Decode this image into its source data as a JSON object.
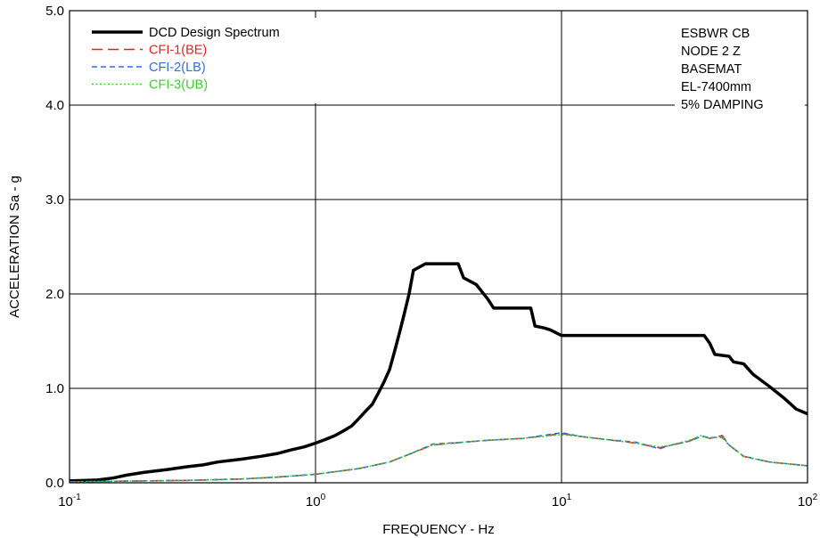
{
  "chart_data": {
    "type": "line",
    "xscale": "log",
    "xlim": [
      0.1,
      100
    ],
    "ylim": [
      0,
      5
    ],
    "xlabel": "FREQUENCY - Hz",
    "ylabel": "ACCELERATION Sa - g",
    "x_ticks": [
      {
        "base": "10",
        "exp": "-1"
      },
      {
        "base": "10",
        "exp": "0"
      },
      {
        "base": "10",
        "exp": "1"
      },
      {
        "base": "10",
        "exp": "2"
      }
    ],
    "y_ticks": [
      "0.0",
      "1.0",
      "2.0",
      "3.0",
      "4.0",
      "5.0"
    ],
    "grid": true,
    "legend_position": "top-left",
    "annotations": [
      "ESBWR CB",
      "NODE 2 Z",
      "BASEMAT",
      "EL-7400mm",
      "5% DAMPING"
    ],
    "series": [
      {
        "name": "DCD Design Spectrum",
        "color": "#000000",
        "style": "solid-thick",
        "points": [
          [
            0.1,
            0.02
          ],
          [
            0.13,
            0.03
          ],
          [
            0.15,
            0.05
          ],
          [
            0.17,
            0.08
          ],
          [
            0.2,
            0.11
          ],
          [
            0.25,
            0.14
          ],
          [
            0.3,
            0.17
          ],
          [
            0.35,
            0.19
          ],
          [
            0.4,
            0.22
          ],
          [
            0.5,
            0.25
          ],
          [
            0.6,
            0.28
          ],
          [
            0.7,
            0.31
          ],
          [
            0.8,
            0.35
          ],
          [
            0.9,
            0.38
          ],
          [
            1.0,
            0.42
          ],
          [
            1.1,
            0.46
          ],
          [
            1.2,
            0.5
          ],
          [
            1.3,
            0.55
          ],
          [
            1.4,
            0.6
          ],
          [
            1.5,
            0.68
          ],
          [
            1.6,
            0.76
          ],
          [
            1.7,
            0.83
          ],
          [
            1.8,
            0.95
          ],
          [
            1.9,
            1.07
          ],
          [
            2.0,
            1.2
          ],
          [
            2.1,
            1.4
          ],
          [
            2.2,
            1.6
          ],
          [
            2.3,
            1.8
          ],
          [
            2.4,
            2.0
          ],
          [
            2.5,
            2.25
          ],
          [
            2.8,
            2.32
          ],
          [
            3.0,
            2.32
          ],
          [
            3.5,
            2.32
          ],
          [
            3.8,
            2.32
          ],
          [
            4.0,
            2.17
          ],
          [
            4.5,
            2.1
          ],
          [
            5.0,
            1.95
          ],
          [
            5.3,
            1.85
          ],
          [
            7.5,
            1.85
          ],
          [
            7.8,
            1.66
          ],
          [
            8.5,
            1.64
          ],
          [
            9.0,
            1.62
          ],
          [
            10.0,
            1.56
          ],
          [
            38.0,
            1.56
          ],
          [
            40.0,
            1.48
          ],
          [
            42.0,
            1.36
          ],
          [
            48.0,
            1.34
          ],
          [
            50.0,
            1.28
          ],
          [
            55.0,
            1.26
          ],
          [
            60.0,
            1.15
          ],
          [
            70.0,
            1.02
          ],
          [
            80.0,
            0.9
          ],
          [
            90.0,
            0.78
          ],
          [
            100.0,
            0.73
          ]
        ]
      },
      {
        "name": "CFI-1(BE)",
        "color": "#e8201d",
        "style": "long-dash",
        "points": [
          [
            0.1,
            0.01
          ],
          [
            0.2,
            0.02
          ],
          [
            0.3,
            0.025
          ],
          [
            0.5,
            0.04
          ],
          [
            0.7,
            0.06
          ],
          [
            1.0,
            0.09
          ],
          [
            1.5,
            0.15
          ],
          [
            2.0,
            0.22
          ],
          [
            2.5,
            0.32
          ],
          [
            3.0,
            0.4
          ],
          [
            4.0,
            0.43
          ],
          [
            5.0,
            0.45
          ],
          [
            7.0,
            0.47
          ],
          [
            10.0,
            0.52
          ],
          [
            12.0,
            0.49
          ],
          [
            15.0,
            0.46
          ],
          [
            20.0,
            0.42
          ],
          [
            25.0,
            0.37
          ],
          [
            28.0,
            0.4
          ],
          [
            33.0,
            0.44
          ],
          [
            37.0,
            0.5
          ],
          [
            40.0,
            0.47
          ],
          [
            45.0,
            0.5
          ],
          [
            48.0,
            0.4
          ],
          [
            55.0,
            0.28
          ],
          [
            70.0,
            0.22
          ],
          [
            100.0,
            0.18
          ]
        ]
      },
      {
        "name": "CFI-2(LB)",
        "color": "#2f6fe0",
        "style": "short-dash",
        "points": [
          [
            0.1,
            0.01
          ],
          [
            0.2,
            0.02
          ],
          [
            0.3,
            0.025
          ],
          [
            0.5,
            0.04
          ],
          [
            0.7,
            0.06
          ],
          [
            1.0,
            0.09
          ],
          [
            1.5,
            0.15
          ],
          [
            2.0,
            0.22
          ],
          [
            2.5,
            0.32
          ],
          [
            3.0,
            0.41
          ],
          [
            4.0,
            0.43
          ],
          [
            5.0,
            0.45
          ],
          [
            7.0,
            0.47
          ],
          [
            10.0,
            0.53
          ],
          [
            12.0,
            0.49
          ],
          [
            15.0,
            0.46
          ],
          [
            20.0,
            0.43
          ],
          [
            25.0,
            0.36
          ],
          [
            28.0,
            0.4
          ],
          [
            33.0,
            0.44
          ],
          [
            37.0,
            0.49
          ],
          [
            40.0,
            0.48
          ],
          [
            45.0,
            0.48
          ],
          [
            48.0,
            0.4
          ],
          [
            55.0,
            0.28
          ],
          [
            70.0,
            0.22
          ],
          [
            100.0,
            0.18
          ]
        ]
      },
      {
        "name": "CFI-3(UB)",
        "color": "#3ccf2a",
        "style": "dotted",
        "points": [
          [
            0.1,
            0.01
          ],
          [
            0.2,
            0.02
          ],
          [
            0.3,
            0.025
          ],
          [
            0.5,
            0.04
          ],
          [
            0.7,
            0.06
          ],
          [
            1.0,
            0.09
          ],
          [
            1.5,
            0.15
          ],
          [
            2.0,
            0.22
          ],
          [
            2.5,
            0.32
          ],
          [
            3.0,
            0.4
          ],
          [
            4.0,
            0.43
          ],
          [
            5.0,
            0.45
          ],
          [
            7.0,
            0.47
          ],
          [
            10.0,
            0.51
          ],
          [
            12.0,
            0.49
          ],
          [
            15.0,
            0.46
          ],
          [
            20.0,
            0.42
          ],
          [
            25.0,
            0.38
          ],
          [
            28.0,
            0.4
          ],
          [
            33.0,
            0.45
          ],
          [
            37.0,
            0.5
          ],
          [
            40.0,
            0.47
          ],
          [
            45.0,
            0.49
          ],
          [
            48.0,
            0.4
          ],
          [
            55.0,
            0.28
          ],
          [
            70.0,
            0.22
          ],
          [
            100.0,
            0.18
          ]
        ]
      }
    ]
  }
}
